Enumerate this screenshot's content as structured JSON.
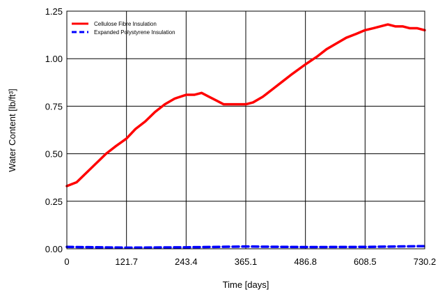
{
  "chart_data": {
    "type": "line",
    "xlabel": "Time [days]",
    "ylabel": "Water Content [lb/ft³]",
    "xlim": [
      0,
      730.2
    ],
    "ylim": [
      0,
      1.25
    ],
    "grid": true,
    "legend_position": "top-left",
    "x_ticks": [
      "0",
      "121.7",
      "243.4",
      "365.1",
      "486.8",
      "608.5",
      "730.2"
    ],
    "y_ticks": [
      "0.00",
      "0.25",
      "0.50",
      "0.75",
      "1.00",
      "1.25"
    ],
    "series": [
      {
        "name": "Cellulose Fibre Insulation",
        "color": "#ff0000",
        "style": "solid",
        "x": [
          0,
          20,
          40,
          60,
          80,
          100,
          121.7,
          140,
          160,
          180,
          200,
          220,
          243.4,
          260,
          275,
          290,
          305,
          320,
          335,
          350,
          365.1,
          380,
          400,
          420,
          440,
          460,
          486.8,
          510,
          530,
          550,
          570,
          590,
          608.5,
          625,
          640,
          655,
          670,
          685,
          700,
          715,
          730.2
        ],
        "y": [
          0.33,
          0.35,
          0.4,
          0.45,
          0.5,
          0.54,
          0.58,
          0.63,
          0.67,
          0.72,
          0.76,
          0.79,
          0.81,
          0.81,
          0.82,
          0.8,
          0.78,
          0.76,
          0.76,
          0.76,
          0.76,
          0.77,
          0.8,
          0.84,
          0.88,
          0.92,
          0.97,
          1.01,
          1.05,
          1.08,
          1.11,
          1.13,
          1.15,
          1.16,
          1.17,
          1.18,
          1.17,
          1.17,
          1.16,
          1.16,
          1.15
        ]
      },
      {
        "name": "Expanded Polystyrene Insulation",
        "color": "#0000ff",
        "style": "dashed",
        "x": [
          0,
          121.7,
          243.4,
          365.1,
          486.8,
          608.5,
          730.2
        ],
        "y": [
          0.01,
          0.006,
          0.008,
          0.012,
          0.009,
          0.01,
          0.014
        ]
      }
    ]
  }
}
